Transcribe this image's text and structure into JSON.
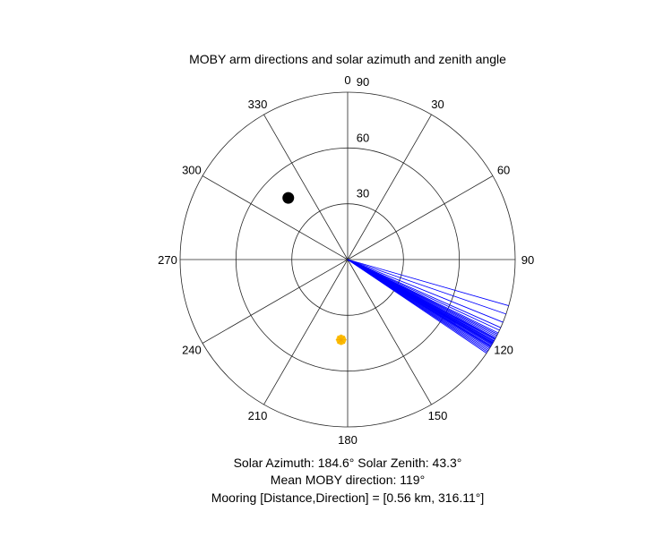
{
  "chart_data": {
    "type": "polar",
    "title": "MOBY arm directions and solar azimuth and zenith angle",
    "theta_zero_location": "N",
    "theta_direction": "clockwise",
    "theta_ticks": [
      0,
      30,
      60,
      90,
      120,
      150,
      180,
      210,
      240,
      270,
      300,
      330
    ],
    "theta_tick_labels": [
      "0",
      "30",
      "60",
      "90",
      "120",
      "150",
      "180",
      "210",
      "240",
      "270",
      "300",
      "330"
    ],
    "r_ticks": [
      30,
      60,
      90
    ],
    "r_tick_labels": [
      "30",
      "60",
      "90"
    ],
    "rlim": [
      0,
      90
    ],
    "grid": true,
    "series": [
      {
        "kind": "arm_directions",
        "color": "#0000ff",
        "radius": 90,
        "theta_deg": [
          106,
          109,
          112,
          114,
          115,
          116,
          116.5,
          117,
          117.5,
          118,
          118.3,
          118.6,
          119,
          119.2,
          119.5,
          119.8,
          120,
          120.3,
          120.6,
          121,
          121.3,
          121.6,
          122,
          122.5,
          123,
          123.5,
          124
        ]
      },
      {
        "kind": "sun",
        "color": "#ffc000",
        "theta_deg": 184.6,
        "r": 43.3
      },
      {
        "kind": "mooring",
        "color": "#000000",
        "theta_deg": 316.11,
        "r": 46
      }
    ]
  },
  "captions": {
    "solar": "Solar Azimuth: 184.6°    Solar Zenith: 43.3°",
    "mean": "Mean MOBY direction: 119°",
    "mooring": "Mooring [Distance,Direction] = [0.56 km, 316.11°]"
  }
}
